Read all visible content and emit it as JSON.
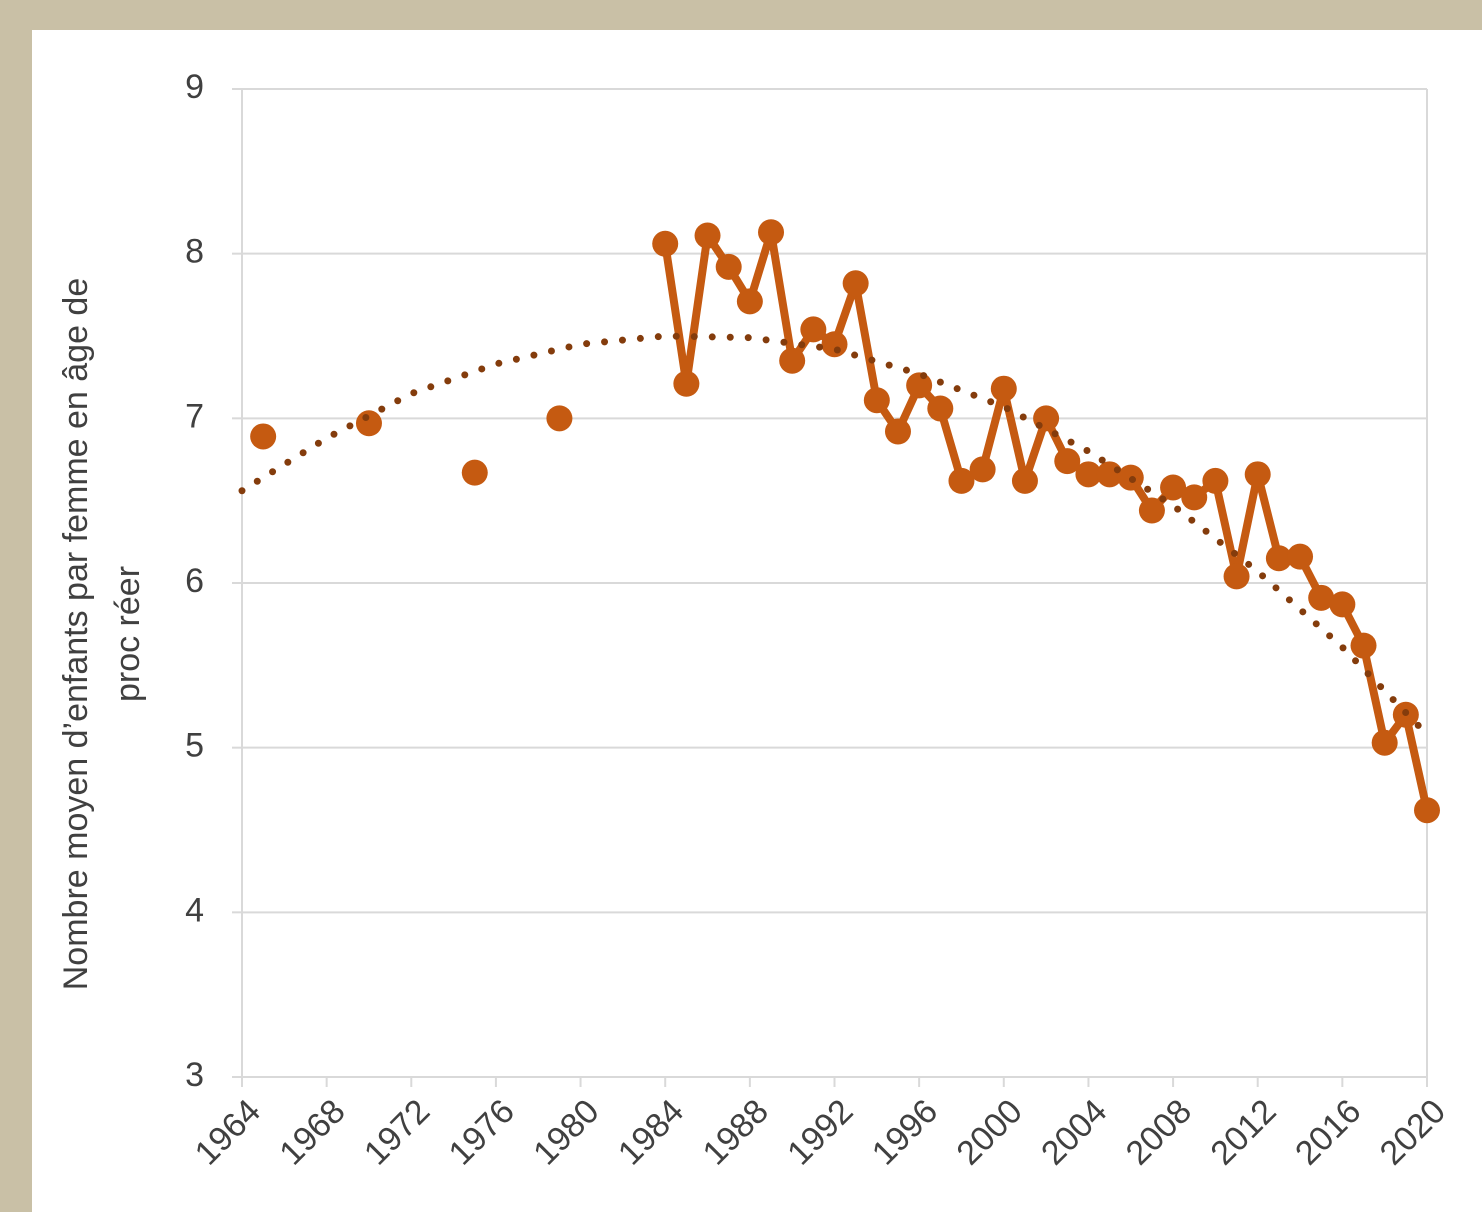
{
  "chart_data": {
    "type": "line",
    "ylabel": [
      "Nombre moyen d’enfants par femme en âge de",
      "proc réer"
    ],
    "xlim": [
      1964,
      2020
    ],
    "xticks": [
      1964,
      1968,
      1972,
      1976,
      1980,
      1984,
      1988,
      1992,
      1996,
      2000,
      2004,
      2008,
      2012,
      2016,
      2020
    ],
    "ylim": [
      3,
      9
    ],
    "yticks": [
      3,
      4,
      5,
      6,
      7,
      8,
      9
    ],
    "grid": true,
    "series": [
      {
        "color": "#c55a11",
        "line": false,
        "markers": true,
        "x": [
          1965,
          1970,
          1975,
          1979
        ],
        "values": [
          6.89,
          6.97,
          6.67,
          7.0
        ]
      },
      {
        "color": "#c55a11",
        "line": true,
        "markers": true,
        "x": [
          1984,
          1985,
          1986,
          1987,
          1988,
          1989,
          1990,
          1991,
          1992,
          1993,
          1994,
          1995,
          1996,
          1997,
          1998,
          1999,
          2000,
          2001,
          2002,
          2003,
          2004,
          2005,
          2006,
          2007,
          2008,
          2009,
          2010,
          2011,
          2012,
          2013,
          2014,
          2015,
          2016,
          2017,
          2018,
          2019,
          2020
        ],
        "values": [
          8.06,
          7.21,
          8.11,
          7.92,
          7.71,
          8.13,
          7.35,
          7.54,
          7.45,
          7.82,
          7.11,
          6.92,
          7.2,
          7.06,
          6.62,
          6.69,
          7.18,
          6.62,
          7.0,
          6.74,
          6.66,
          6.66,
          6.64,
          6.44,
          6.58,
          6.52,
          6.62,
          6.04,
          6.66,
          6.15,
          6.16,
          5.91,
          5.87,
          5.62,
          5.03,
          5.2,
          4.62
        ]
      },
      {
        "color": "#843c0c",
        "line": true,
        "markers": false,
        "dash": "dotted",
        "x": [
          1964,
          1968,
          1972,
          1976,
          1980,
          1984,
          1988,
          1992,
          1996,
          2000,
          2004,
          2008,
          2012,
          2016,
          2020
        ],
        "values": [
          6.56,
          6.88,
          7.15,
          7.33,
          7.45,
          7.5,
          7.49,
          7.42,
          7.27,
          7.07,
          6.8,
          6.47,
          6.07,
          5.61,
          5.08
        ]
      }
    ]
  }
}
